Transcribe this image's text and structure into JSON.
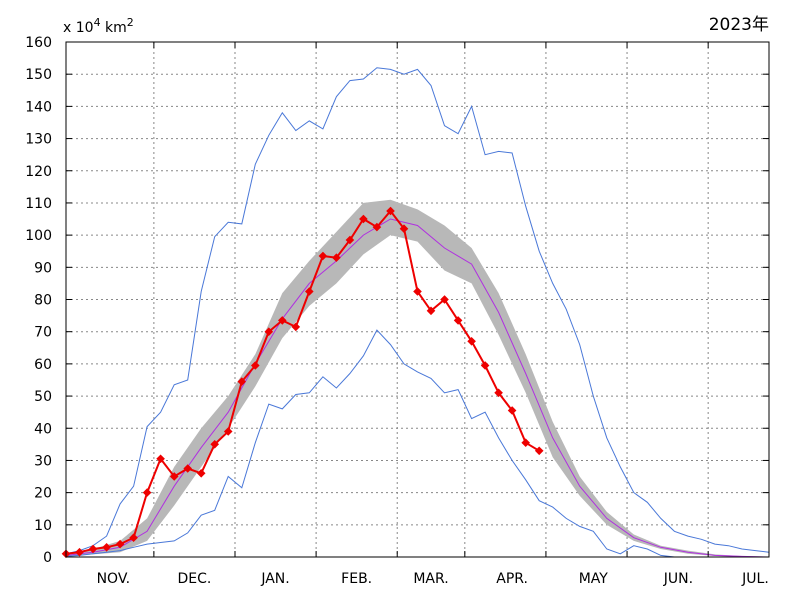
{
  "chart_data": {
    "type": "line",
    "year_label": "2023年",
    "unit_label": {
      "prefix": "x 10",
      "exp1": "4",
      "mid": " km",
      "exp2": "2"
    },
    "ylim": [
      0,
      160
    ],
    "y_ticks": [
      0,
      10,
      20,
      30,
      40,
      50,
      60,
      70,
      80,
      90,
      100,
      110,
      120,
      130,
      140,
      150,
      160
    ],
    "x_index_range": [
      0,
      52
    ],
    "month_ticks": [
      {
        "label": "NOV.",
        "at": 3.5
      },
      {
        "label": "DEC.",
        "at": 9.5
      },
      {
        "label": "JAN.",
        "at": 15.5
      },
      {
        "label": "FEB.",
        "at": 21.5
      },
      {
        "label": "MAR.",
        "at": 27.0
      },
      {
        "label": "APR.",
        "at": 33.0
      },
      {
        "label": "MAY",
        "at": 39.0
      },
      {
        "label": "JUN.",
        "at": 45.3
      },
      {
        "label": "JUL.",
        "at": 51.0
      }
    ],
    "month_boundaries": [
      6.5,
      12.5,
      18.5,
      24.5,
      29.5,
      35.5,
      41.5,
      47.5
    ],
    "grid": true,
    "colors": {
      "current": "#ee0000",
      "average": "#b030e0",
      "band": "#b8b8b8",
      "extremes": "#4a78d8",
      "grid": "#888888"
    },
    "series": [
      {
        "role": "current",
        "x": [
          0,
          1,
          2,
          3,
          4,
          5,
          6,
          7,
          8,
          9,
          10,
          11,
          12,
          13,
          14,
          15,
          16,
          17,
          18,
          19,
          20,
          21,
          22,
          23,
          24,
          25,
          26,
          27,
          28,
          29,
          30,
          31,
          32,
          33,
          34,
          35,
          36
        ],
        "values": [
          1.0,
          1.5,
          2.5,
          3.0,
          4.0,
          6.0,
          20.0,
          30.5,
          25.0,
          27.5,
          26.0,
          35.0,
          39.0,
          54.5,
          59.5,
          70.0,
          73.5,
          71.5,
          82.5,
          93.5,
          93.0,
          98.5,
          105.0,
          102.5,
          107.5,
          102.0,
          82.5,
          76.5,
          80.0,
          73.5,
          67.0,
          59.5,
          51.0,
          45.5,
          35.5,
          33.0,
          null
        ]
      },
      {
        "role": "average",
        "x": [
          0,
          2,
          4,
          6,
          8,
          10,
          12,
          14,
          16,
          18,
          20,
          22,
          24,
          26,
          28,
          30,
          32,
          34,
          36,
          38,
          40,
          42,
          44,
          46,
          48,
          50,
          52
        ],
        "values": [
          0.5,
          1.5,
          3.0,
          8.0,
          22.0,
          34.0,
          45.0,
          60.0,
          74.0,
          85.0,
          92.0,
          100.0,
          105.0,
          103.0,
          96.0,
          91.0,
          76.0,
          57.0,
          37.0,
          22.0,
          12.0,
          6.0,
          3.0,
          1.5,
          0.5,
          0.2,
          0.0
        ]
      },
      {
        "role": "band-upper",
        "x": [
          0,
          2,
          4,
          6,
          8,
          10,
          12,
          14,
          16,
          18,
          20,
          22,
          24,
          26,
          28,
          30,
          32,
          34,
          36,
          38,
          40,
          42,
          44,
          46,
          48,
          50,
          52
        ],
        "values": [
          1.0,
          2.5,
          5.0,
          12.0,
          28.0,
          40.0,
          50.0,
          63.0,
          82.0,
          92.0,
          101.0,
          110.0,
          111.0,
          108.0,
          103.0,
          96.0,
          82.0,
          63.0,
          42.0,
          25.0,
          14.0,
          7.0,
          3.5,
          2.0,
          0.8,
          0.3,
          0.1
        ]
      },
      {
        "role": "band-lower",
        "x": [
          0,
          2,
          4,
          6,
          8,
          10,
          12,
          14,
          16,
          18,
          20,
          22,
          24,
          26,
          28,
          30,
          32,
          34,
          36,
          38,
          40,
          42,
          44,
          46,
          48,
          50,
          52
        ],
        "values": [
          0.2,
          0.8,
          1.5,
          5.0,
          16.0,
          28.0,
          40.0,
          53.0,
          68.0,
          78.0,
          85.0,
          94.0,
          100.0,
          98.0,
          89.0,
          85.0,
          69.0,
          51.0,
          31.0,
          19.0,
          10.0,
          5.0,
          2.5,
          1.0,
          0.3,
          0.1,
          0.0
        ]
      },
      {
        "role": "maximum",
        "x": [
          0,
          1,
          2,
          3,
          4,
          5,
          6,
          7,
          8,
          9,
          10,
          11,
          12,
          13,
          14,
          15,
          16,
          17,
          18,
          19,
          20,
          21,
          22,
          23,
          24,
          25,
          26,
          27,
          28,
          29,
          30,
          31,
          32,
          33,
          34,
          35,
          36,
          37,
          38,
          39,
          40,
          41,
          42,
          43,
          44,
          45,
          46,
          47,
          48,
          49,
          50,
          51,
          52
        ],
        "values": [
          1.0,
          2.0,
          3.5,
          6.5,
          16.5,
          22.0,
          40.5,
          45.0,
          53.5,
          55.0,
          82.5,
          99.5,
          104.0,
          103.5,
          122.0,
          131.0,
          138.0,
          132.5,
          135.5,
          133.0,
          143.0,
          148.0,
          148.5,
          152.0,
          151.5,
          150.0,
          151.5,
          146.5,
          134.0,
          131.5,
          140.0,
          125.0,
          126.0,
          125.5,
          109.0,
          95.0,
          85.0,
          77.0,
          66.0,
          50.0,
          37.0,
          28.0,
          20.0,
          17.0,
          12.0,
          8.0,
          6.5,
          5.5,
          4.0,
          3.5,
          2.5,
          2.0,
          1.5
        ]
      },
      {
        "role": "minimum",
        "x": [
          0,
          1,
          2,
          3,
          4,
          5,
          6,
          7,
          8,
          9,
          10,
          11,
          12,
          13,
          14,
          15,
          16,
          17,
          18,
          19,
          20,
          21,
          22,
          23,
          24,
          25,
          26,
          27,
          28,
          29,
          30,
          31,
          32,
          33,
          34,
          35,
          36,
          37,
          38,
          39,
          40,
          41,
          42,
          43,
          44,
          45,
          46,
          47,
          48,
          49,
          50,
          51,
          52
        ],
        "values": [
          0.2,
          0.5,
          1.0,
          1.5,
          2.0,
          3.0,
          4.0,
          4.5,
          5.0,
          7.5,
          13.0,
          14.5,
          25.0,
          21.5,
          35.5,
          47.5,
          46.0,
          50.5,
          51.0,
          56.0,
          52.5,
          57.0,
          62.5,
          70.5,
          66.0,
          60.0,
          57.5,
          55.5,
          51.0,
          52.0,
          43.0,
          45.0,
          37.0,
          30.0,
          24.0,
          17.5,
          15.5,
          12.0,
          9.5,
          8.0,
          2.5,
          1.0,
          3.5,
          2.5,
          0.5,
          0.0,
          0.0,
          0.0,
          0.0,
          0.0,
          0.0,
          0.0,
          0.0
        ]
      }
    ]
  }
}
